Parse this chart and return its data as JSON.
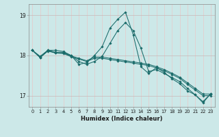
{
  "xlabel": "Humidex (Indice chaleur)",
  "background_color": "#cce8e8",
  "grid_color_v": "#e8c8c8",
  "grid_color_h": "#c8b8b8",
  "line_color": "#1a6b6a",
  "xlim": [
    -0.5,
    23.5
  ],
  "ylim": [
    16.72,
    19.28
  ],
  "yticks": [
    17,
    18,
    19
  ],
  "xticks": [
    0,
    1,
    2,
    3,
    4,
    5,
    6,
    7,
    8,
    9,
    10,
    11,
    12,
    13,
    14,
    15,
    16,
    17,
    18,
    19,
    20,
    21,
    22,
    23
  ],
  "series": [
    [
      18.13,
      17.98,
      18.13,
      18.13,
      18.1,
      18.0,
      17.78,
      17.82,
      18.0,
      18.22,
      18.68,
      18.9,
      19.08,
      18.52,
      17.72,
      17.55,
      17.7,
      17.58,
      17.42,
      17.3,
      17.12,
      17.02,
      16.82,
      17.05
    ],
    [
      18.13,
      17.95,
      18.13,
      18.08,
      18.08,
      18.0,
      17.85,
      17.78,
      17.85,
      17.98,
      18.3,
      18.62,
      18.82,
      18.62,
      18.18,
      17.6,
      17.65,
      17.55,
      17.45,
      17.35,
      17.18,
      17.02,
      16.85,
      17.05
    ],
    [
      18.13,
      17.95,
      18.12,
      18.07,
      18.06,
      17.99,
      17.93,
      17.87,
      17.96,
      17.96,
      17.93,
      17.9,
      17.87,
      17.84,
      17.81,
      17.78,
      17.72,
      17.65,
      17.56,
      17.46,
      17.32,
      17.18,
      17.04,
      17.04
    ],
    [
      18.13,
      17.95,
      18.11,
      18.06,
      18.05,
      17.97,
      17.91,
      17.85,
      17.93,
      17.93,
      17.9,
      17.87,
      17.84,
      17.81,
      17.78,
      17.75,
      17.69,
      17.62,
      17.53,
      17.43,
      17.28,
      17.14,
      17.0,
      17.0
    ]
  ]
}
